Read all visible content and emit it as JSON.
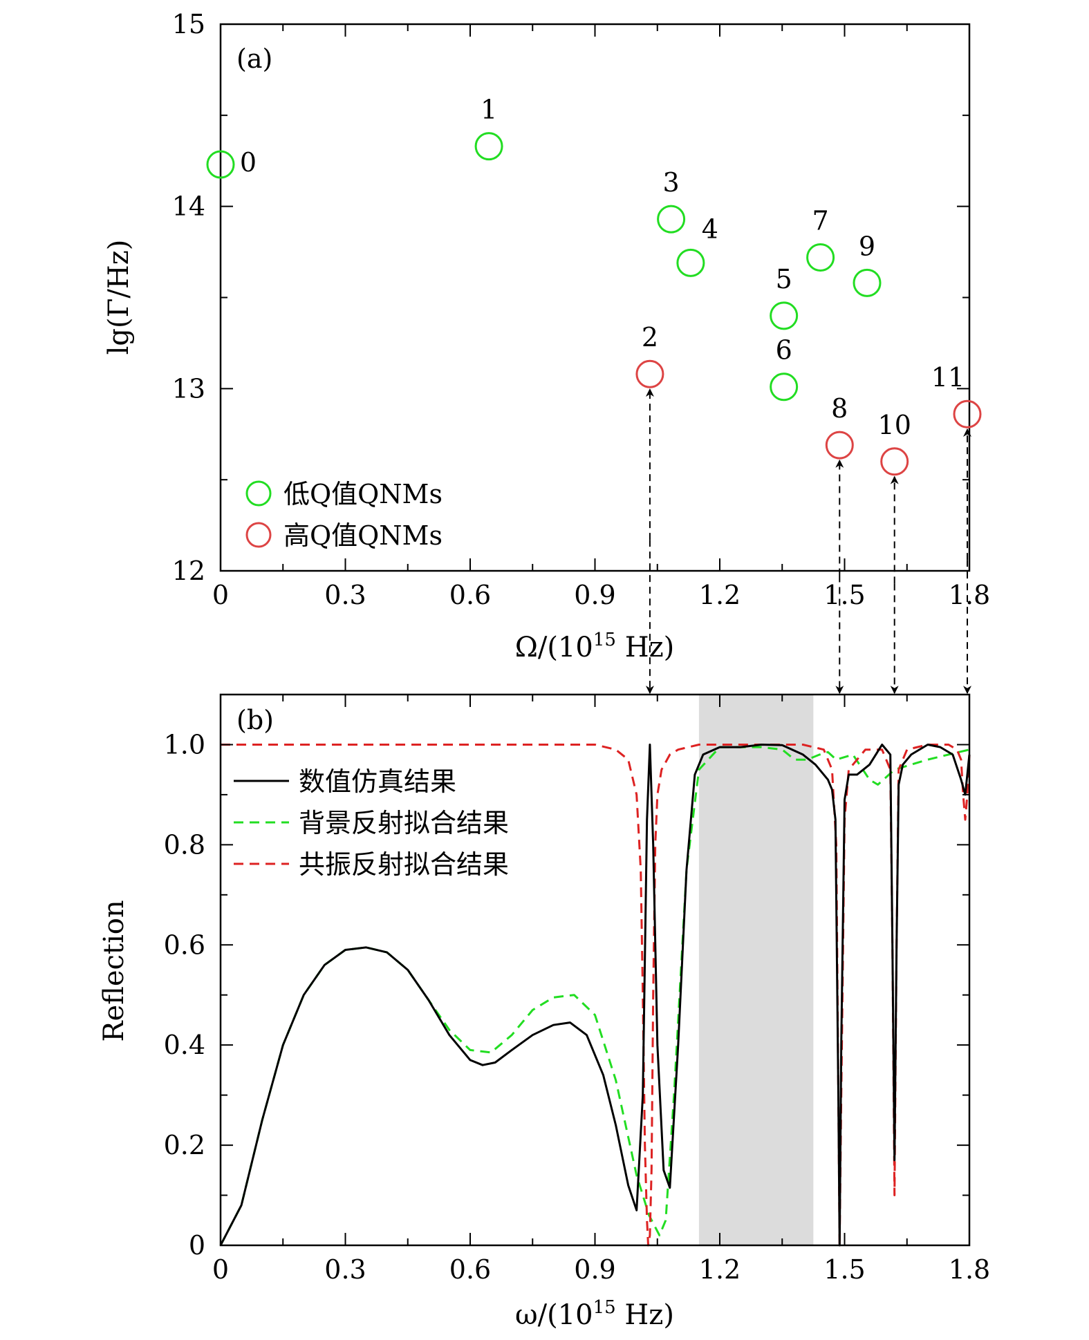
{
  "chart_data": [
    {
      "panel": "(a)",
      "type": "scatter",
      "xlabel": {
        "main": "Ω/(10",
        "sup": "15",
        "tail": " Hz)"
      },
      "ylabel": "lg(Γ/Hz)",
      "xlim": [
        0,
        1.8
      ],
      "ylim": [
        12,
        15
      ],
      "xticks": [
        "0",
        "0.3",
        "0.6",
        "0.9",
        "1.2",
        "1.5",
        "1.8"
      ],
      "yticks": [
        "12",
        "13",
        "14",
        "15"
      ],
      "legend_position": "bottom-left",
      "series": [
        {
          "name": "低Q值QNMs",
          "color": "#22dd22",
          "points": [
            {
              "label": "0",
              "x": 0.0,
              "y": 14.23
            },
            {
              "label": "1",
              "x": 0.645,
              "y": 14.33
            },
            {
              "label": "3",
              "x": 1.083,
              "y": 13.93
            },
            {
              "label": "4",
              "x": 1.13,
              "y": 13.69
            },
            {
              "label": "5",
              "x": 1.354,
              "y": 13.4
            },
            {
              "label": "6",
              "x": 1.354,
              "y": 13.01
            },
            {
              "label": "7",
              "x": 1.442,
              "y": 13.72
            },
            {
              "label": "9",
              "x": 1.554,
              "y": 13.58
            }
          ]
        },
        {
          "name": "高Q值QNMs",
          "color": "#dd4444",
          "points": [
            {
              "label": "2",
              "x": 1.032,
              "y": 13.08
            },
            {
              "label": "8",
              "x": 1.488,
              "y": 12.69
            },
            {
              "label": "10",
              "x": 1.62,
              "y": 12.6
            },
            {
              "label": "11",
              "x": 1.795,
              "y": 12.86
            }
          ]
        }
      ],
      "connectors_x": [
        1.032,
        1.488,
        1.62,
        1.795
      ]
    },
    {
      "panel": "(b)",
      "type": "line",
      "xlabel": {
        "main": "ω/(10",
        "sup": "15",
        "tail": " Hz)"
      },
      "ylabel": "Reflection",
      "xlim": [
        0,
        1.8
      ],
      "ylim": [
        0,
        1.1
      ],
      "xticks": [
        "0",
        "0.3",
        "0.6",
        "0.9",
        "1.2",
        "1.5",
        "1.8"
      ],
      "yticks": [
        "0",
        "0.2",
        "0.4",
        "0.6",
        "0.8",
        "1.0"
      ],
      "legend_position": "top-left",
      "shaded_band": [
        1.15,
        1.425
      ],
      "series": [
        {
          "name": "数值仿真结果",
          "color": "#000000",
          "style": "solid",
          "x": [
            0,
            0.05,
            0.1,
            0.15,
            0.2,
            0.25,
            0.3,
            0.35,
            0.4,
            0.45,
            0.5,
            0.55,
            0.6,
            0.63,
            0.66,
            0.7,
            0.75,
            0.8,
            0.84,
            0.88,
            0.92,
            0.95,
            0.98,
            1.0,
            1.015,
            1.025,
            1.032,
            1.04,
            1.05,
            1.065,
            1.08,
            1.1,
            1.12,
            1.14,
            1.16,
            1.2,
            1.25,
            1.3,
            1.35,
            1.4,
            1.43,
            1.45,
            1.46,
            1.47,
            1.478,
            1.485,
            1.488,
            1.492,
            1.5,
            1.51,
            1.53,
            1.56,
            1.59,
            1.61,
            1.615,
            1.62,
            1.625,
            1.63,
            1.64,
            1.66,
            1.7,
            1.73,
            1.76,
            1.78,
            1.79,
            1.8
          ],
          "y": [
            0.0,
            0.08,
            0.25,
            0.4,
            0.5,
            0.56,
            0.59,
            0.595,
            0.585,
            0.55,
            0.49,
            0.42,
            0.37,
            0.36,
            0.365,
            0.39,
            0.42,
            0.44,
            0.445,
            0.42,
            0.34,
            0.24,
            0.12,
            0.07,
            0.3,
            0.85,
            1.0,
            0.8,
            0.4,
            0.15,
            0.115,
            0.4,
            0.75,
            0.94,
            0.98,
            0.995,
            0.995,
            1.0,
            0.999,
            0.98,
            0.96,
            0.94,
            0.93,
            0.91,
            0.85,
            0.3,
            0.0,
            0.4,
            0.89,
            0.94,
            0.94,
            0.96,
            1.0,
            0.98,
            0.6,
            0.17,
            0.6,
            0.92,
            0.96,
            0.98,
            1.0,
            0.995,
            0.98,
            0.93,
            0.9,
            0.98
          ]
        },
        {
          "name": "背景反射拟合结果",
          "color": "#22dd22",
          "style": "dashed",
          "x": [
            0,
            0.05,
            0.1,
            0.15,
            0.2,
            0.25,
            0.3,
            0.35,
            0.4,
            0.45,
            0.5,
            0.55,
            0.6,
            0.65,
            0.7,
            0.75,
            0.8,
            0.85,
            0.9,
            0.95,
            1.0,
            1.03,
            1.055,
            1.07,
            1.09,
            1.12,
            1.15,
            1.2,
            1.3,
            1.35,
            1.38,
            1.41,
            1.44,
            1.46,
            1.48,
            1.52,
            1.56,
            1.58,
            1.62,
            1.66,
            1.7,
            1.75,
            1.8
          ],
          "y": [
            0.0,
            0.08,
            0.25,
            0.4,
            0.5,
            0.56,
            0.59,
            0.595,
            0.585,
            0.55,
            0.49,
            0.43,
            0.39,
            0.385,
            0.42,
            0.47,
            0.495,
            0.5,
            0.46,
            0.33,
            0.14,
            0.06,
            0.02,
            0.05,
            0.3,
            0.75,
            0.95,
            0.995,
            0.995,
            0.99,
            0.97,
            0.97,
            0.98,
            0.985,
            0.97,
            0.98,
            0.93,
            0.92,
            0.95,
            0.96,
            0.97,
            0.98,
            0.99
          ]
        },
        {
          "name": "共振反射拟合结果",
          "color": "#dd2222",
          "style": "dashed",
          "x": [
            0,
            0.9,
            0.95,
            0.98,
            1.0,
            1.01,
            1.015,
            1.02,
            1.025,
            1.028,
            1.032,
            1.036,
            1.04,
            1.045,
            1.05,
            1.06,
            1.08,
            1.1,
            1.15,
            1.2,
            1.3,
            1.4,
            1.45,
            1.47,
            1.48,
            1.485,
            1.488,
            1.492,
            1.5,
            1.51,
            1.55,
            1.59,
            1.61,
            1.615,
            1.62,
            1.625,
            1.63,
            1.65,
            1.7,
            1.75,
            1.77,
            1.78,
            1.785,
            1.79,
            1.795,
            1.8
          ],
          "y": [
            1.0,
            1.0,
            0.99,
            0.97,
            0.9,
            0.75,
            0.5,
            0.2,
            0.05,
            0.0,
            0.02,
            0.15,
            0.5,
            0.8,
            0.9,
            0.95,
            0.98,
            0.99,
            1.0,
            1.0,
            1.0,
            1.0,
            0.99,
            0.95,
            0.8,
            0.3,
            0.0,
            0.3,
            0.85,
            0.95,
            0.99,
            0.99,
            0.95,
            0.6,
            0.1,
            0.6,
            0.95,
            0.99,
            1.0,
            1.0,
            0.99,
            0.97,
            0.9,
            0.85,
            0.9,
            0.98
          ]
        }
      ]
    }
  ]
}
